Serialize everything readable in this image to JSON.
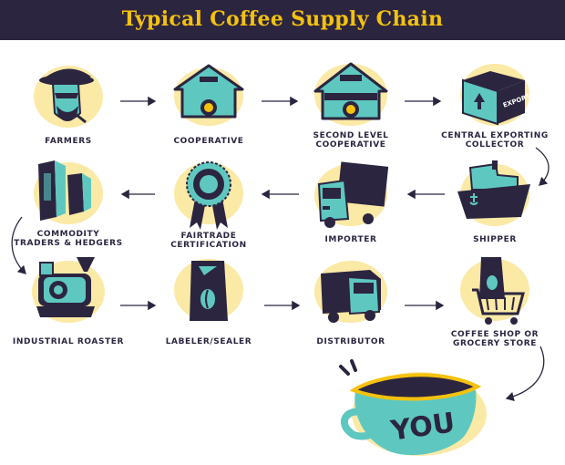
{
  "title": "Typical Coffee Supply Chain",
  "colors": {
    "navy": "#2c2540",
    "yellow": "#f4c20d",
    "teal": "#5ec8c0",
    "wash": "#fbe9a6"
  },
  "steps": [
    {
      "label": "FARMERS",
      "icon": "farmer-icon"
    },
    {
      "label": "COOPERATIVE",
      "icon": "house-icon"
    },
    {
      "label": "SECOND LEVEL\nCOOPERATIVE",
      "icon": "big-house-icon"
    },
    {
      "label": "CENTRAL EXPORTING\nCOLLECTOR",
      "icon": "export-box-icon"
    },
    {
      "label": "SHIPPER",
      "icon": "ship-icon"
    },
    {
      "label": "IMPORTER",
      "icon": "truck-icon"
    },
    {
      "label": "FAIRTRADE\nCERTIFICATION",
      "icon": "rosette-icon"
    },
    {
      "label": "COMMODITY\nTRADERS & HEDGERS",
      "icon": "buildings-icon"
    },
    {
      "label": "INDUSTRIAL ROASTER",
      "icon": "roaster-icon"
    },
    {
      "label": "LABELER/SEALER",
      "icon": "coffee-bag-icon"
    },
    {
      "label": "DISTRIBUTOR",
      "icon": "van-icon"
    },
    {
      "label": "COFFEE SHOP OR\nGROCERY STORE",
      "icon": "shopping-cart-icon"
    }
  ],
  "cup_text": "YOU"
}
